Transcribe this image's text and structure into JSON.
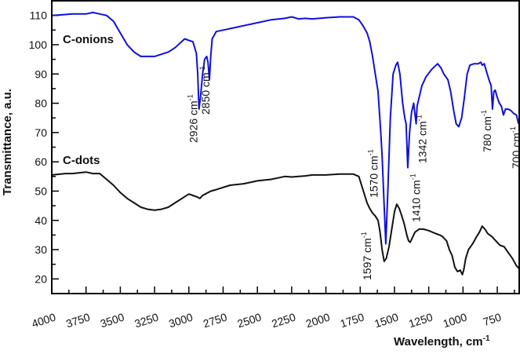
{
  "chart_data": {
    "type": "line",
    "title": "",
    "xlabel": "Wavelength, cm",
    "xlabel_sup": "-1",
    "ylabel": "Transmittance, a.u.",
    "xlim": [
      4000,
      590
    ],
    "ylim": [
      15,
      115
    ],
    "x_reversed": true,
    "grid": false,
    "x_ticks": [
      4000,
      3750,
      3500,
      3250,
      3000,
      2750,
      2500,
      2250,
      2000,
      1750,
      1500,
      1250,
      1000,
      750
    ],
    "y_ticks": [
      20,
      30,
      40,
      50,
      60,
      70,
      80,
      90,
      100,
      110
    ],
    "series": [
      {
        "name": "C-onions",
        "color": "#1010d8",
        "x": [
          4000,
          3900,
          3850,
          3750,
          3700,
          3650,
          3600,
          3550,
          3500,
          3450,
          3400,
          3350,
          3250,
          3150,
          3100,
          3030,
          3000,
          2970,
          2945,
          2935,
          2926,
          2915,
          2900,
          2885,
          2870,
          2860,
          2850,
          2840,
          2830,
          2800,
          2750,
          2650,
          2600,
          2500,
          2400,
          2300,
          2250,
          2200,
          2150,
          2100,
          2000,
          1900,
          1800,
          1760,
          1730,
          1700,
          1680,
          1660,
          1640,
          1620,
          1600,
          1590,
          1575,
          1563,
          1550,
          1530,
          1510,
          1490,
          1477,
          1460,
          1440,
          1425,
          1415,
          1403,
          1390,
          1375,
          1360,
          1350,
          1342,
          1335,
          1320,
          1300,
          1270,
          1230,
          1185,
          1160,
          1140,
          1110,
          1090,
          1070,
          1050,
          1031,
          1010,
          990,
          970,
          950,
          920,
          890,
          870,
          860,
          845,
          830,
          810,
          795,
          785,
          775,
          765,
          750,
          735,
          720,
          705,
          690,
          670,
          650,
          630,
          610,
          595
        ],
        "y": [
          110,
          110.3,
          110.5,
          110.5,
          111,
          110.5,
          110,
          108,
          104,
          100,
          97.5,
          96,
          96,
          97.5,
          99,
          102,
          101.5,
          101,
          97,
          90,
          78,
          82,
          90,
          95,
          96,
          94,
          88,
          96,
          102,
          104.5,
          105,
          106,
          106.5,
          107.5,
          108.5,
          109,
          109.5,
          108.8,
          109,
          108.8,
          109.2,
          109.5,
          109.5,
          108.5,
          106.5,
          104,
          101,
          96,
          90,
          84,
          70,
          62,
          45,
          32,
          48,
          75,
          90,
          93,
          94,
          90,
          80,
          75,
          73,
          58,
          70,
          77,
          80,
          76,
          73,
          79,
          82,
          86,
          89,
          91.5,
          93.5,
          92,
          90,
          88,
          84,
          78,
          73,
          72,
          75,
          82,
          90,
          93,
          93.5,
          93.5,
          94,
          93,
          93.5,
          91,
          88,
          86,
          78,
          84,
          84.5,
          82,
          80,
          79,
          76,
          78,
          78,
          77.5,
          76.5,
          76,
          73
        ]
      },
      {
        "name": "C-dots",
        "color": "#111111",
        "x": [
          4000,
          3900,
          3850,
          3750,
          3700,
          3650,
          3600,
          3550,
          3500,
          3450,
          3400,
          3350,
          3300,
          3250,
          3200,
          3150,
          3100,
          3050,
          3000,
          2970,
          2940,
          2920,
          2900,
          2880,
          2840,
          2800,
          2700,
          2600,
          2500,
          2400,
          2350,
          2300,
          2250,
          2200,
          2150,
          2100,
          2000,
          1900,
          1800,
          1760,
          1740,
          1720,
          1700,
          1680,
          1660,
          1640,
          1620,
          1605,
          1590,
          1575,
          1560,
          1540,
          1520,
          1500,
          1483,
          1465,
          1450,
          1430,
          1410,
          1397,
          1385,
          1370,
          1350,
          1320,
          1290,
          1250,
          1200,
          1170,
          1150,
          1120,
          1100,
          1080,
          1060,
          1040,
          1020,
          1005,
          995,
          980,
          960,
          930,
          900,
          880,
          860,
          840,
          820,
          790,
          760,
          730,
          700,
          670,
          640,
          610,
          590
        ],
        "y": [
          55.5,
          56,
          56,
          56.5,
          56,
          56,
          54,
          52,
          49.5,
          47.5,
          46,
          44.5,
          43.8,
          43.5,
          43.8,
          44.5,
          46,
          47.5,
          49,
          48.5,
          48,
          47.5,
          48.5,
          49,
          50,
          50.5,
          52,
          52.5,
          53.5,
          54,
          54.5,
          55,
          54.8,
          55,
          55.2,
          55.5,
          55.5,
          55.8,
          55.8,
          55,
          52,
          49,
          46,
          44,
          42.5,
          41.5,
          40,
          36,
          30,
          26,
          27,
          31,
          37,
          43,
          45.5,
          44,
          42,
          39,
          35,
          33,
          32.5,
          34,
          36,
          37,
          37,
          36.5,
          35.5,
          35,
          34.5,
          33,
          30,
          28,
          24,
          22.5,
          23,
          21.5,
          23,
          27,
          30,
          32,
          34.5,
          36,
          38,
          37,
          35.5,
          34.5,
          33,
          31.5,
          31,
          29,
          27,
          24.5,
          23.5
        ]
      }
    ],
    "annotations": [
      {
        "text": "2926 cm",
        "sup": "-1",
        "x": 2926
      },
      {
        "text": "2850 cm",
        "sup": "-1",
        "x": 2850
      },
      {
        "text": "1570 cm",
        "sup": "-1",
        "x": 1570
      },
      {
        "text": "1597 cm",
        "sup": "-1",
        "x": 1597
      },
      {
        "text": "1410 cm",
        "sup": "-1",
        "x": 1410
      },
      {
        "text": "1342 cm",
        "sup": "-1",
        "x": 1342
      },
      {
        "text": "780 cm",
        "sup": "-1",
        "x": 780
      },
      {
        "text": "700 cm",
        "sup": "-1",
        "x": 700
      }
    ],
    "series_labels": [
      "C-onions",
      "C-dots"
    ]
  }
}
